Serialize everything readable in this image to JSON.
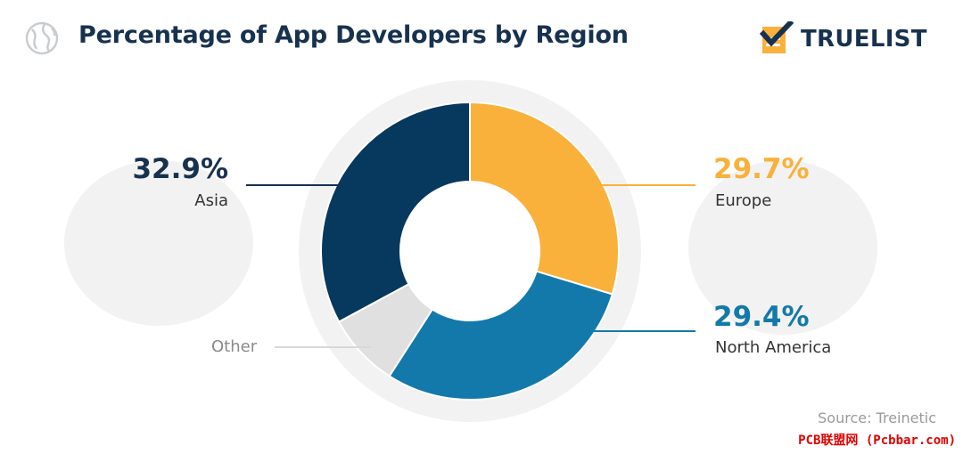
{
  "header": {
    "title": "Percentage of App Developers by Region",
    "brand": "TRUELIST"
  },
  "chart_data": {
    "type": "pie",
    "title": "Percentage of App Developers by Region",
    "categories": [
      "Asia",
      "Europe",
      "North America",
      "Other"
    ],
    "values": [
      32.9,
      29.7,
      29.4,
      8.0
    ],
    "value_labels": [
      "32.9%",
      "29.7%",
      "29.4%",
      ""
    ],
    "colors": [
      "#07385e",
      "#f9b13b",
      "#1379aa",
      "#e0e0e0"
    ],
    "legend": "none"
  },
  "source": "Source: Treinetic",
  "watermark": "PCB联盟网 (Pcbbar.com)"
}
